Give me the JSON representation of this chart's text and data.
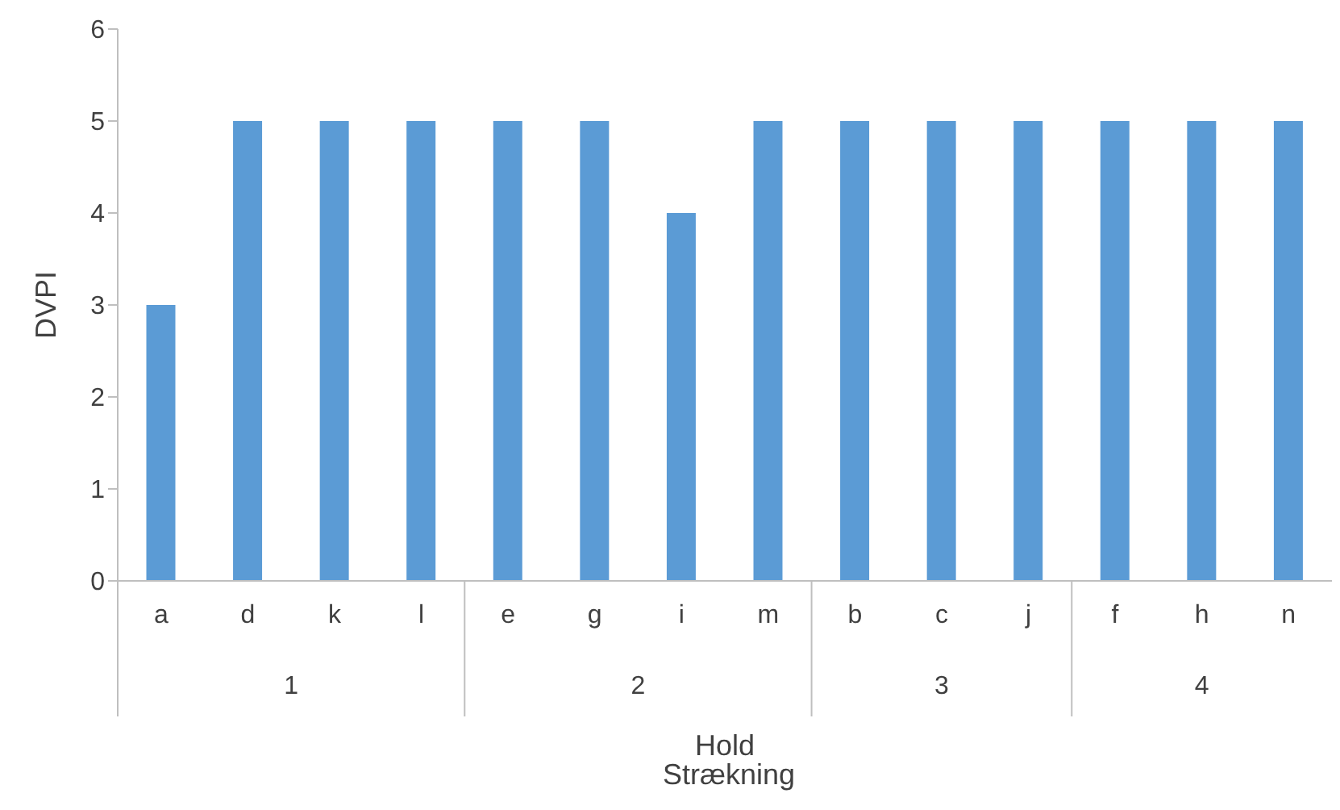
{
  "chart_data": {
    "type": "bar",
    "xlabel": "Hold",
    "ylabel": "DVPI",
    "categories": [
      "a",
      "d",
      "k",
      "l",
      "e",
      "g",
      "i",
      "m",
      "b",
      "c",
      "j",
      "f",
      "h",
      "n"
    ],
    "values": [
      3,
      5,
      5,
      5,
      5,
      5,
      4,
      5,
      5,
      5,
      5,
      5,
      5,
      5
    ],
    "color": "#5b9bd5",
    "ylim": [
      0,
      6
    ],
    "yticks": [
      0,
      1,
      2,
      3,
      4,
      5,
      6
    ],
    "grid": false,
    "annotations": [
      "1",
      "2",
      "3",
      "4",
      "Strækning"
    ]
  }
}
